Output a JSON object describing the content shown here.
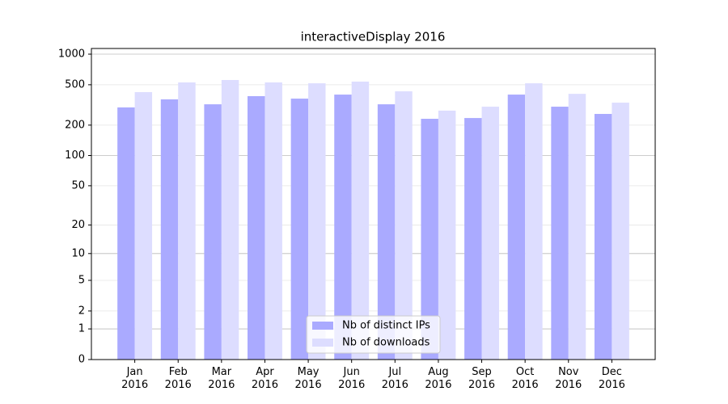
{
  "chart_data": {
    "type": "bar",
    "title": "interactiveDisplay 2016",
    "categories": [
      "Jan\n2016",
      "Feb\n2016",
      "Mar\n2016",
      "Apr\n2016",
      "May\n2016",
      "Jun\n2016",
      "Jul\n2016",
      "Aug\n2016",
      "Sep\n2016",
      "Oct\n2016",
      "Nov\n2016",
      "Dec\n2016"
    ],
    "series": [
      {
        "name": "Nb of distinct IPs",
        "color": "#aaaaff",
        "values": [
          299,
          359,
          321,
          386,
          365,
          400,
          321,
          231,
          235,
          400,
          304,
          258
        ]
      },
      {
        "name": "Nb of downloads",
        "color": "#ddddff",
        "values": [
          423,
          527,
          557,
          527,
          517,
          537,
          431,
          278,
          304,
          517,
          407,
          333
        ]
      }
    ],
    "yscale": "log1p",
    "ylim": [
      0,
      1137
    ],
    "yticks": [
      0,
      1,
      2,
      5,
      10,
      20,
      50,
      100,
      200,
      500,
      1000
    ],
    "grid": true,
    "legend": "lower center"
  }
}
